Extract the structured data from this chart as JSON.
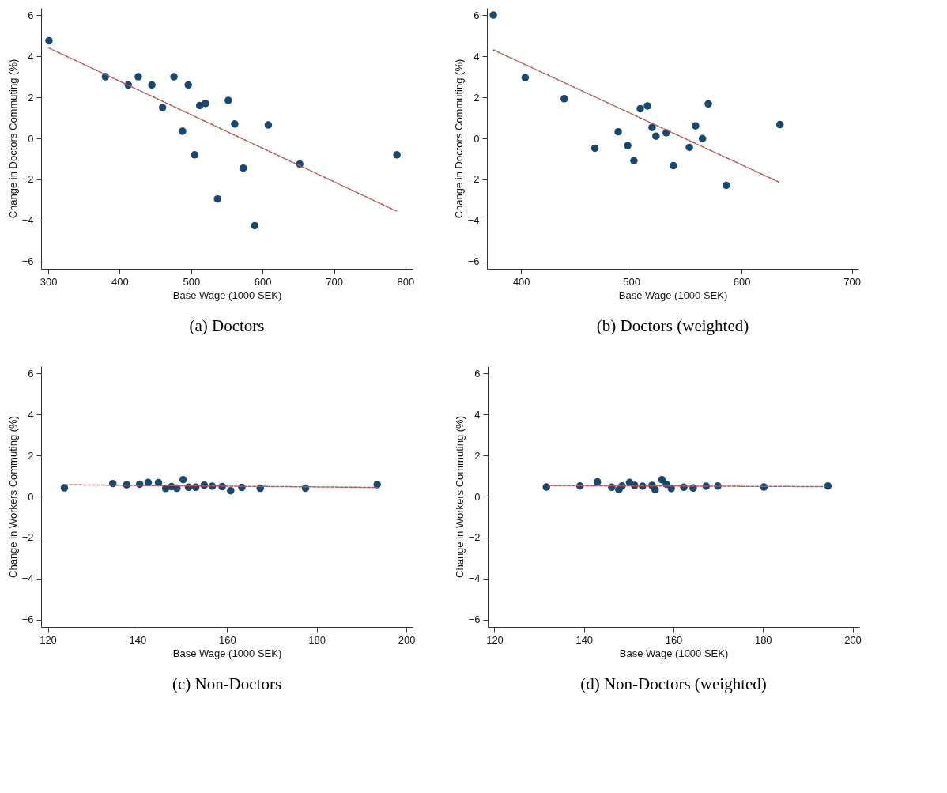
{
  "chart_data": [
    {
      "type": "scatter",
      "title": "(a)  Doctors",
      "xlabel": "Base Wage (1000 SEK)",
      "ylabel": "Change in Doctors Commuting (%)",
      "xlim": [
        290,
        810
      ],
      "xticks": [
        300,
        400,
        500,
        600,
        700,
        800
      ],
      "ylim": [
        -6.35,
        6.35
      ],
      "yticks": [
        -6,
        -4,
        -2,
        0,
        2,
        4,
        6
      ],
      "grid": false,
      "marker": "circle",
      "series": [
        {
          "type": "scatter",
          "color": "#1a476f",
          "x": [
            301,
            380,
            412,
            426,
            445,
            460,
            476,
            496,
            488,
            512,
            520,
            552,
            561,
            608,
            505,
            573,
            537,
            652,
            589,
            788
          ],
          "values": [
            4.75,
            3.0,
            2.6,
            3.0,
            2.6,
            1.5,
            3.0,
            2.6,
            0.35,
            1.6,
            1.7,
            1.85,
            0.7,
            0.65,
            -0.8,
            -1.45,
            -2.95,
            -1.25,
            -4.25,
            -0.8
          ]
        },
        {
          "type": "line",
          "color": "#b5585a",
          "line_style": "dashed",
          "marker": "none",
          "x": [
            301,
            788
          ],
          "values": [
            4.4,
            -3.55
          ]
        }
      ]
    },
    {
      "type": "scatter",
      "title": "(b)  Doctors (weighted)",
      "xlabel": "Base Wage (1000 SEK)",
      "ylabel": "Change in Doctors Commuting (%)",
      "xlim": [
        369,
        706
      ],
      "xticks": [
        400,
        500,
        600,
        700
      ],
      "ylim": [
        -6.35,
        6.35
      ],
      "yticks": [
        -6,
        -4,
        -2,
        0,
        2,
        4,
        6
      ],
      "grid": false,
      "marker": "circle",
      "series": [
        {
          "type": "scatter",
          "color": "#1a476f",
          "x": [
            374.8,
            403.7,
            439.1,
            466.9,
            488.1,
            496.7,
            502.3,
            508.1,
            514.6,
            518.8,
            522.3,
            531.6,
            538.1,
            552.6,
            558.2,
            564.5,
            569.8,
            586.1,
            634.8
          ],
          "values": [
            6.0,
            2.96,
            1.93,
            -0.48,
            0.32,
            -0.35,
            -1.09,
            1.44,
            1.58,
            0.53,
            0.11,
            0.27,
            -1.33,
            -0.44,
            0.61,
            -0.01,
            1.68,
            -2.29,
            0.67
          ]
        },
        {
          "type": "line",
          "color": "#b5585a",
          "line_style": "dashed",
          "marker": "none",
          "x": [
            374.8,
            633.9
          ],
          "values": [
            4.31,
            -2.13
          ]
        }
      ]
    },
    {
      "type": "scatter",
      "title": "(c)  Non-Doctors",
      "xlabel": "Base Wage (1000 SEK)",
      "ylabel": "Change in Workers Commuting (%)",
      "xlim": [
        118.5,
        201.4
      ],
      "xticks": [
        120,
        140,
        160,
        180,
        200
      ],
      "ylim": [
        -6.35,
        6.35
      ],
      "yticks": [
        -6,
        -4,
        -2,
        0,
        2,
        4,
        6
      ],
      "grid": false,
      "marker": "circle",
      "series": [
        {
          "type": "scatter",
          "color": "#1a476f",
          "x": [
            123.7,
            134.5,
            137.6,
            140.5,
            142.4,
            144.7,
            146.3,
            147.6,
            148.8,
            150.2,
            151.4,
            153.0,
            154.9,
            156.7,
            158.9,
            160.8,
            163.3,
            167.4,
            177.5,
            193.5
          ],
          "values": [
            0.42,
            0.63,
            0.57,
            0.6,
            0.68,
            0.67,
            0.39,
            0.48,
            0.4,
            0.82,
            0.45,
            0.45,
            0.55,
            0.5,
            0.48,
            0.28,
            0.44,
            0.4,
            0.4,
            0.58
          ]
        },
        {
          "type": "line",
          "color": "#b5585a",
          "line_style": "dashed",
          "marker": "none",
          "x": [
            123.8,
            193.5
          ],
          "values": [
            0.57,
            0.44
          ]
        }
      ]
    },
    {
      "type": "scatter",
      "title": "(d)  Non-Doctors (weighted)",
      "xlabel": "Base Wage (1000 SEK)",
      "ylabel": "Change in Workers Commuting (%)",
      "xlim": [
        118.5,
        201.5
      ],
      "xticks": [
        120,
        140,
        160,
        180,
        200
      ],
      "ylim": [
        -6.35,
        6.35
      ],
      "yticks": [
        -6,
        -4,
        -2,
        0,
        2,
        4,
        6
      ],
      "grid": false,
      "marker": "circle",
      "series": [
        {
          "type": "scatter",
          "color": "#1a476f",
          "x": [
            131.6,
            139.1,
            143.0,
            146.2,
            147.8,
            148.5,
            150.2,
            151.3,
            153.1,
            155.2,
            155.9,
            157.4,
            158.4,
            159.5,
            162.3,
            164.4,
            167.3,
            169.9,
            180.2,
            194.5
          ],
          "values": [
            0.46,
            0.51,
            0.71,
            0.45,
            0.33,
            0.51,
            0.68,
            0.54,
            0.5,
            0.54,
            0.33,
            0.82,
            0.6,
            0.39,
            0.45,
            0.41,
            0.5,
            0.51,
            0.46,
            0.51
          ]
        },
        {
          "type": "line",
          "color": "#b5585a",
          "line_style": "dashed",
          "marker": "none",
          "x": [
            132.2,
            193.9
          ],
          "values": [
            0.53,
            0.48
          ]
        }
      ]
    }
  ]
}
